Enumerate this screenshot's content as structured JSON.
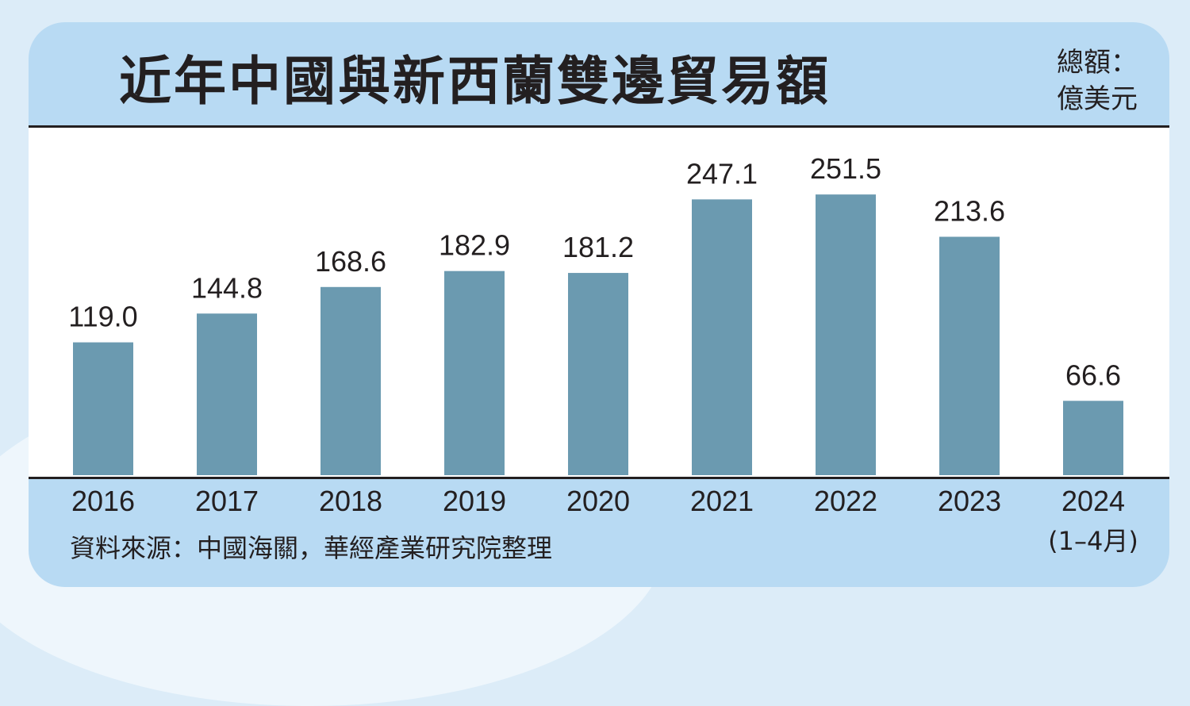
{
  "title": "近年中國與新西蘭雙邊貿易額",
  "unit_line1": "總額：",
  "unit_line2": "億美元",
  "source": "資料來源：中國海關，華經產業研究院整理",
  "colors": {
    "bar": "#6b9ab0",
    "panel": "#b8daf3",
    "plot_bg": "#ffffff",
    "text": "#231f20"
  },
  "chart_data": {
    "type": "bar",
    "categories": [
      "2016",
      "2017",
      "2018",
      "2019",
      "2020",
      "2021",
      "2022",
      "2023",
      "2024"
    ],
    "category_sublabels": [
      "",
      "",
      "",
      "",
      "",
      "",
      "",
      "",
      "(1–4月)"
    ],
    "values": [
      119.0,
      144.8,
      168.6,
      182.9,
      181.2,
      247.1,
      251.5,
      213.6,
      66.6
    ],
    "value_labels": [
      "119.0",
      "144.8",
      "168.6",
      "182.9",
      "181.2",
      "247.1",
      "251.5",
      "213.6",
      "66.6"
    ],
    "ylim": [
      0,
      290
    ],
    "grid": false,
    "legend": "none"
  }
}
